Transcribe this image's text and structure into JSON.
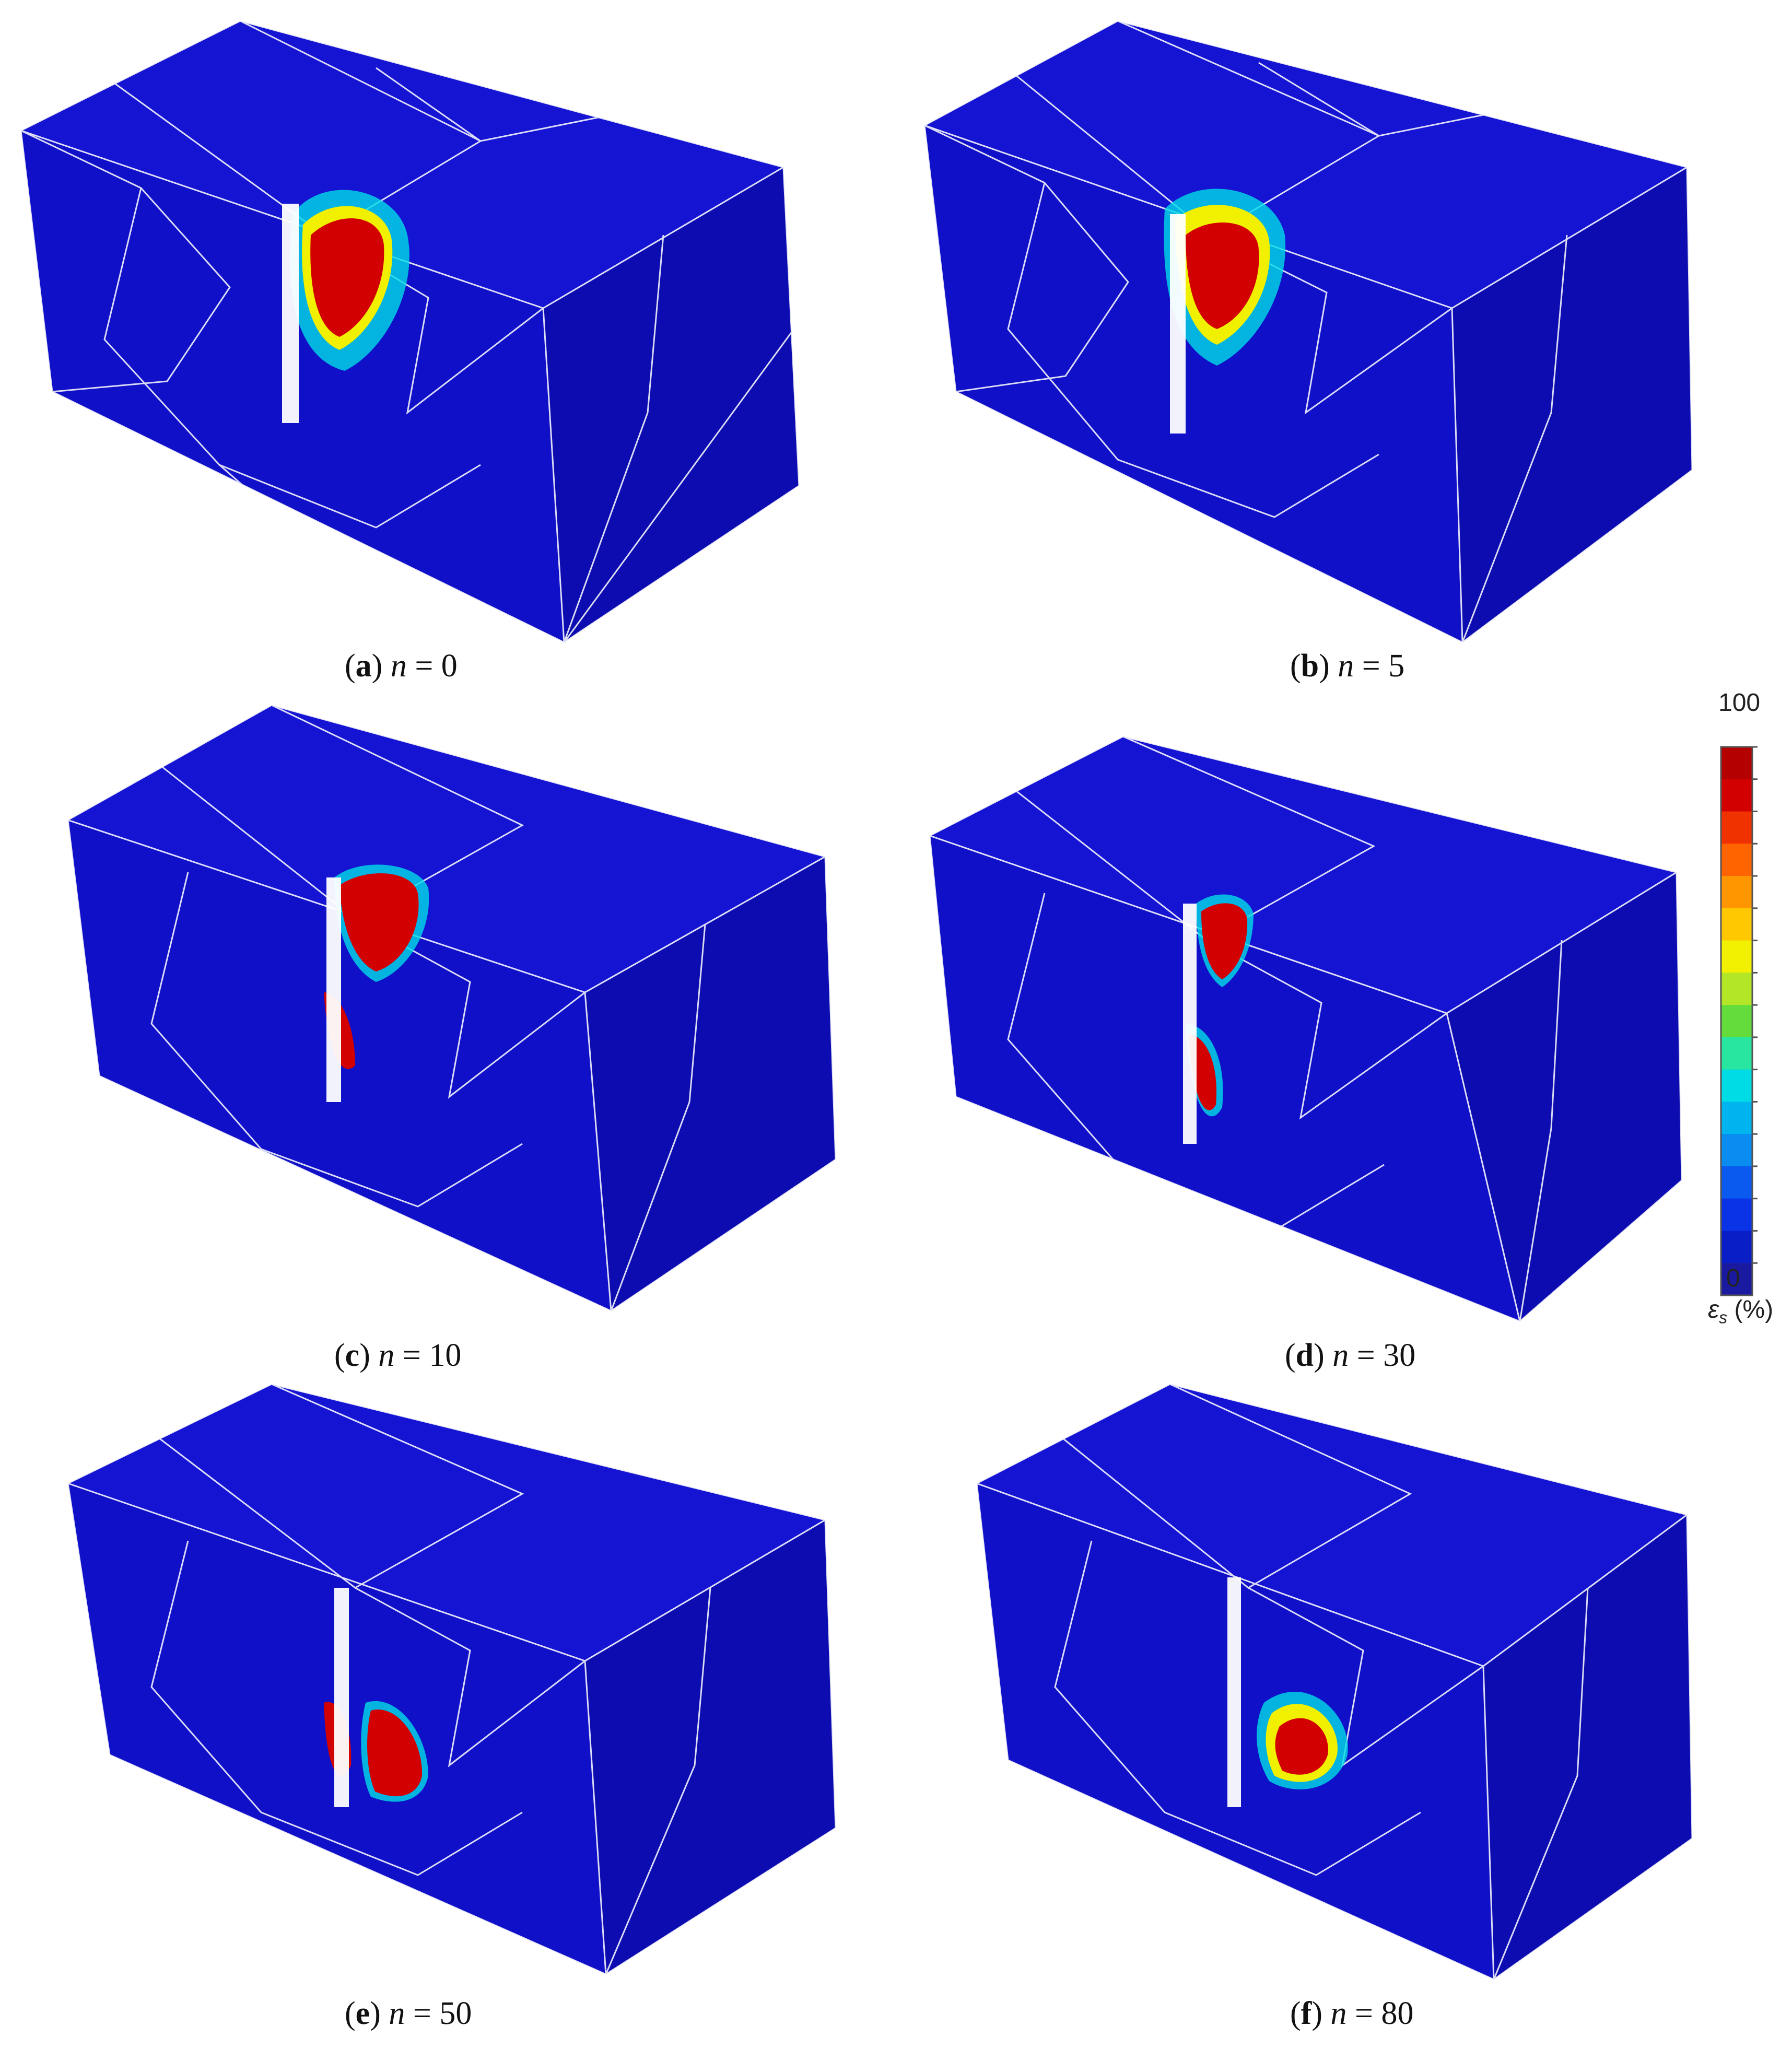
{
  "figure": {
    "panels": [
      {
        "id": "a",
        "label": "a",
        "n": "0"
      },
      {
        "id": "b",
        "label": "b",
        "n": "5"
      },
      {
        "id": "c",
        "label": "c",
        "n": "10"
      },
      {
        "id": "d",
        "label": "d",
        "n": "30"
      },
      {
        "id": "e",
        "label": "e",
        "n": "50"
      },
      {
        "id": "f",
        "label": "f",
        "n": "80"
      }
    ],
    "caption_prefix": "(",
    "caption_suffix": ")",
    "n_symbol": "n",
    "equals": " = "
  },
  "colorbar": {
    "max_label": "100",
    "min_label": "0",
    "quantity_symbol": "ε",
    "quantity_subscript": "s",
    "unit": "(%)",
    "colors": [
      "#1a1aa0",
      "#0a1ec8",
      "#0a32e6",
      "#0a5af0",
      "#0a8cf0",
      "#00b4f0",
      "#00dce6",
      "#28e6a0",
      "#64dc3c",
      "#b4e628",
      "#f0f000",
      "#ffc800",
      "#ff9600",
      "#ff6400",
      "#f03200",
      "#d20000",
      "#b40000"
    ]
  },
  "colors": {
    "block_front": "#1010c8",
    "block_top": "#1414d2",
    "block_side": "#0c0cb0",
    "mesh_line": "#ffffff"
  }
}
